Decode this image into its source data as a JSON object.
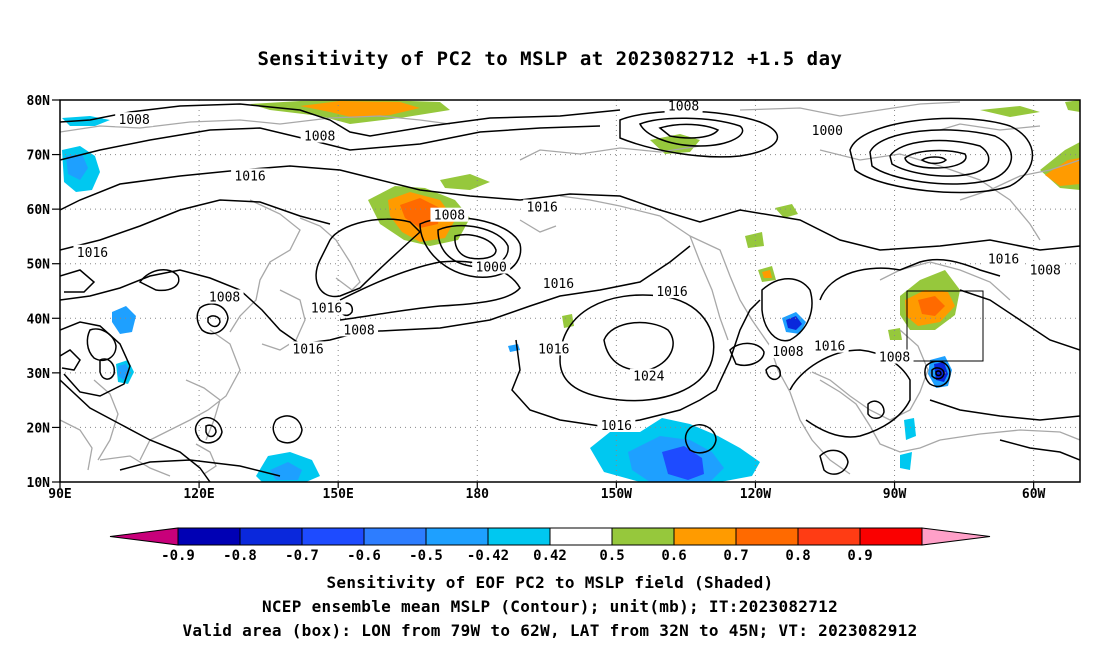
{
  "title": "Sensitivity of PC2 to MSLP at 2023082712 +1.5 day",
  "map": {
    "lat_labels": [
      "80N",
      "70N",
      "60N",
      "50N",
      "40N",
      "30N",
      "20N",
      "10N"
    ],
    "lon_labels": [
      "90E",
      "120E",
      "150E",
      "180",
      "150W",
      "120W",
      "90W",
      "60W"
    ],
    "lon_range": [
      "90E",
      "50W"
    ],
    "lat_range": [
      "10N",
      "80N"
    ],
    "box": {
      "lon_from": "79W",
      "lon_to": "62W",
      "lat_from": "32N",
      "lat_to": "45N"
    },
    "contour_labels": [
      {
        "text": "1008",
        "lon": 106,
        "lat": 76.3
      },
      {
        "text": "1008",
        "lon": 146,
        "lat": 73.3
      },
      {
        "text": "1008",
        "lon": -135.5,
        "lat": 78.8
      },
      {
        "text": "1000",
        "lon": -104.5,
        "lat": 74.3
      },
      {
        "text": "1016",
        "lon": 131,
        "lat": 66.0
      },
      {
        "text": "1016",
        "lon": 97,
        "lat": 52.0
      },
      {
        "text": "1008",
        "lon": 174,
        "lat": 58.8
      },
      {
        "text": "1016",
        "lon": -166,
        "lat": 60.3
      },
      {
        "text": "1000",
        "lon": -177,
        "lat": 49.3
      },
      {
        "text": "1016",
        "lon": -162.5,
        "lat": 46.3
      },
      {
        "text": "1008",
        "lon": 125.5,
        "lat": 43.8
      },
      {
        "text": "1016",
        "lon": 147.5,
        "lat": 41.8
      },
      {
        "text": "1008",
        "lon": 154.5,
        "lat": 37.8
      },
      {
        "text": "1016",
        "lon": 143.5,
        "lat": 34.3
      },
      {
        "text": "1016",
        "lon": -163.5,
        "lat": 34.3
      },
      {
        "text": "1016",
        "lon": -138,
        "lat": 44.8
      },
      {
        "text": "1024",
        "lon": -143,
        "lat": 29.3
      },
      {
        "text": "1008",
        "lon": -113,
        "lat": 33.8
      },
      {
        "text": "1016",
        "lon": -104,
        "lat": 34.8
      },
      {
        "text": "1008",
        "lon": -90,
        "lat": 32.8
      },
      {
        "text": "1016",
        "lon": -66.5,
        "lat": 50.8
      },
      {
        "text": "1008",
        "lon": -57.5,
        "lat": 48.8
      },
      {
        "text": "1016",
        "lon": -150,
        "lat": 20.3
      }
    ]
  },
  "colorbar": {
    "levels": [
      "-0.9",
      "-0.8",
      "-0.7",
      "-0.6",
      "-0.5",
      "-0.42",
      "0.42",
      "0.5",
      "0.6",
      "0.7",
      "0.8",
      "0.9"
    ],
    "colors": [
      "#c8007a",
      "#0000b4",
      "#0a28dc",
      "#1e4bff",
      "#2d7dff",
      "#1ea0ff",
      "#00c8f0",
      "#ffffff",
      "#96c83c",
      "#ff9b00",
      "#ff6a00",
      "#ff3c14",
      "#fa0000",
      "#ffa0c8"
    ]
  },
  "captions": [
    "Sensitivity of EOF PC2 to MSLP field (Shaded)",
    "NCEP ensemble mean MSLP (Contour); unit(mb); IT:2023082712",
    "Valid area (box): LON from 79W to 62W, LAT from 32N to 45N; VT: 2023082912"
  ]
}
